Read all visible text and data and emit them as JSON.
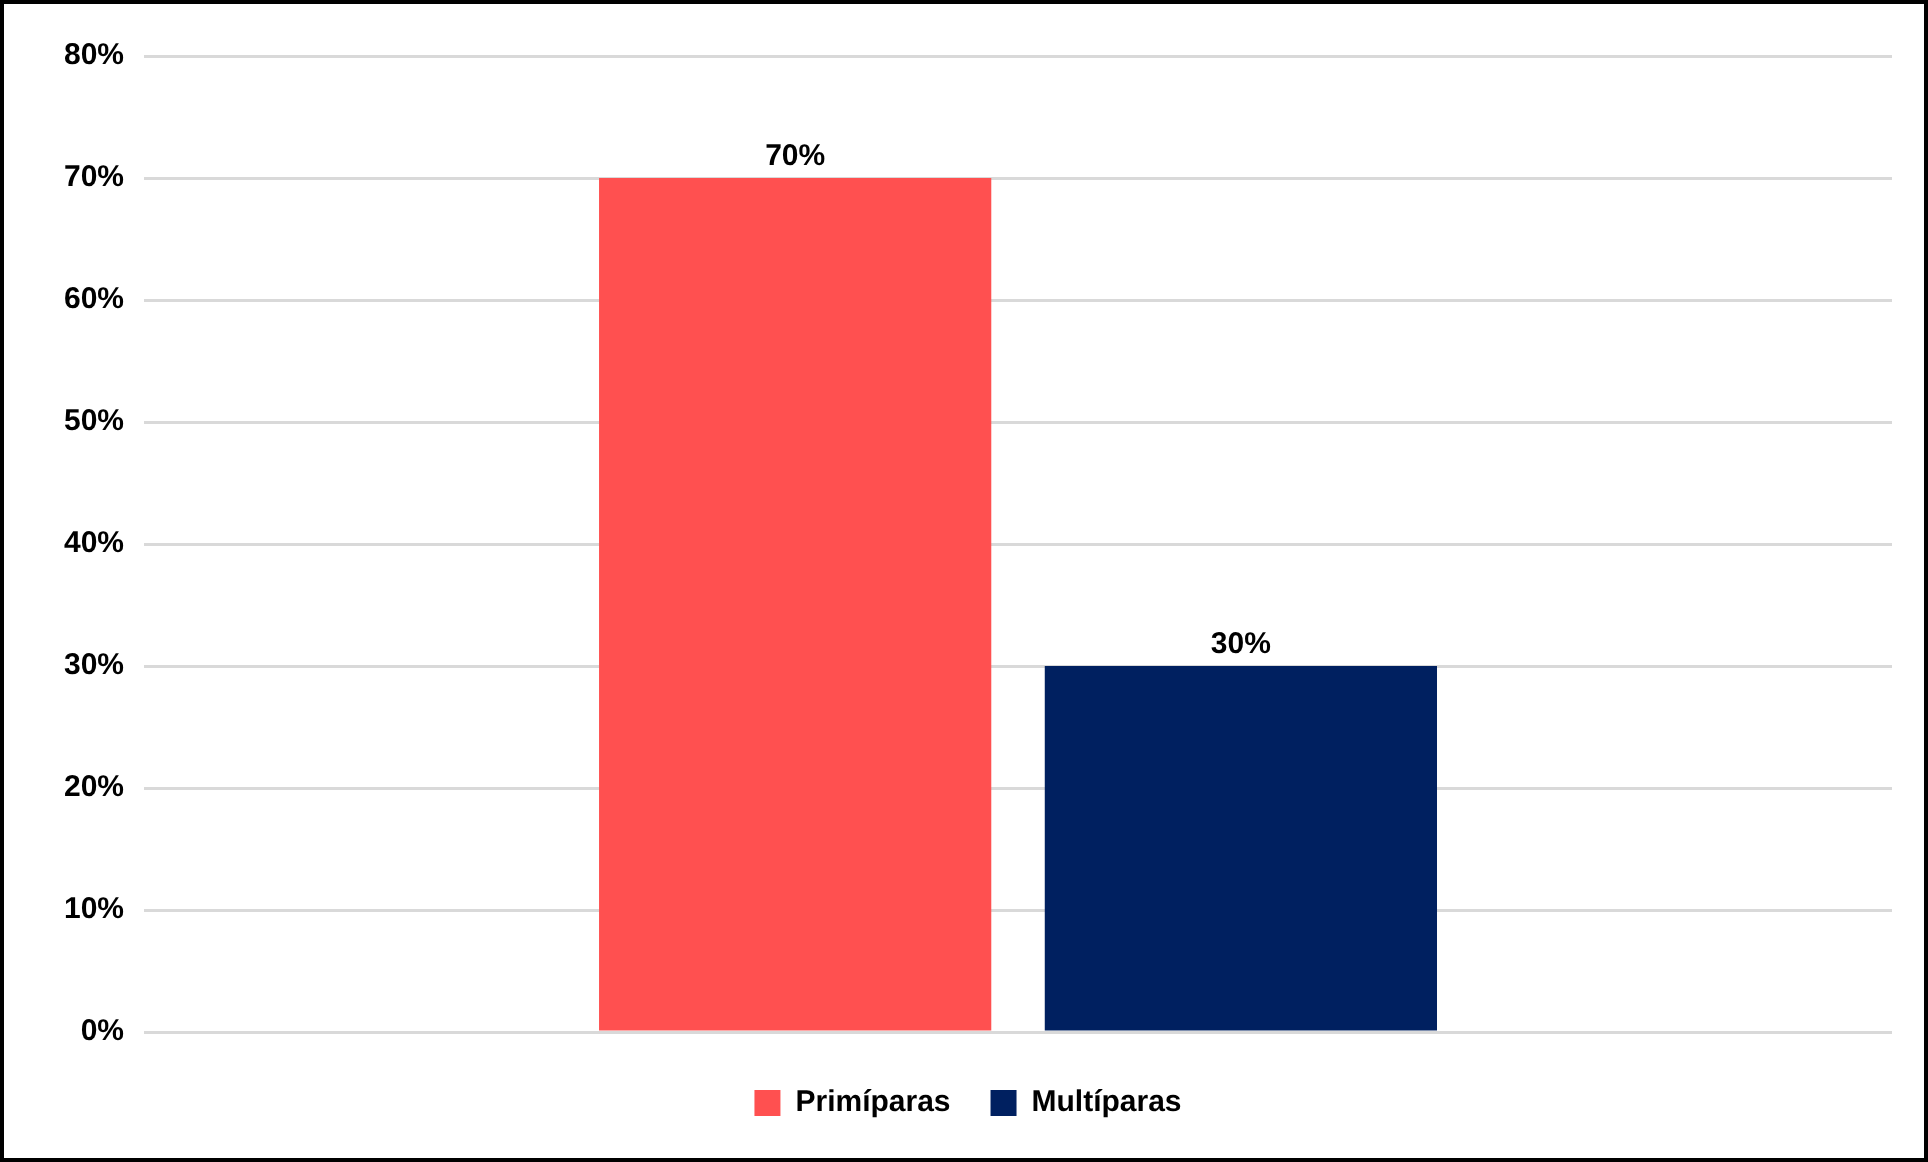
{
  "chart_data": {
    "type": "bar",
    "categories": [
      null
    ],
    "series": [
      {
        "name": "Primíparas",
        "color": "#ff5050",
        "values": [
          70
        ],
        "value_labels": [
          "70%"
        ]
      },
      {
        "name": "Multíparas",
        "color": "#002060",
        "values": [
          30
        ],
        "value_labels": [
          "30%"
        ]
      }
    ],
    "ylim": [
      0,
      80
    ],
    "yticks": [
      {
        "value": 0,
        "label": "0%"
      },
      {
        "value": 10,
        "label": "10%"
      },
      {
        "value": 20,
        "label": "20%"
      },
      {
        "value": 30,
        "label": "30%"
      },
      {
        "value": 40,
        "label": "40%"
      },
      {
        "value": 50,
        "label": "50%"
      },
      {
        "value": 60,
        "label": "60%"
      },
      {
        "value": 70,
        "label": "70%"
      },
      {
        "value": 80,
        "label": "80%"
      }
    ],
    "grid": "y",
    "legend": "bottom"
  }
}
